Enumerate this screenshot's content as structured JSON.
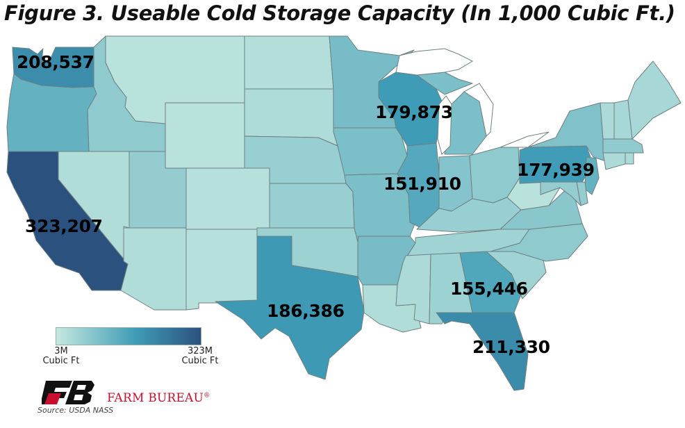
{
  "title": "Figure 3. Useable Cold Storage Capacity (In 1,000 Cubic Ft.)",
  "colors": {
    "low": "#c4e8df",
    "mid": "#3f9cb6",
    "high": "#2b527f"
  },
  "legend": {
    "min_value": "3M",
    "min_unit": "Cubic Ft",
    "max_value": "323M",
    "max_unit": "Cubic Ft"
  },
  "brand": "FARM BUREAU",
  "brand_mark": "®",
  "source": "Source: USDA NASS",
  "chart_data": {
    "type": "choropleth",
    "title": "Figure 3. Useable Cold Storage Capacity (In 1,000 Cubic Ft.)",
    "scale": {
      "min": 3000,
      "max": 323000,
      "unit": "1,000 Cubic Ft"
    },
    "labeled_states": [
      {
        "state": "WA",
        "value": 208537,
        "label": "208,537"
      },
      {
        "state": "CA",
        "value": 323207,
        "label": "323,207"
      },
      {
        "state": "WI",
        "value": 179873,
        "label": "179,873"
      },
      {
        "state": "IL",
        "value": 151910,
        "label": "151,910"
      },
      {
        "state": "PA",
        "value": 177939,
        "label": "177,939"
      },
      {
        "state": "TX",
        "value": 186386,
        "label": "186,386"
      },
      {
        "state": "GA",
        "value": 155446,
        "label": "155,446"
      },
      {
        "state": "FL",
        "value": 211330,
        "label": "211,330"
      }
    ],
    "estimated_levels": {
      "WA": 0.64,
      "OR": 0.4,
      "CA": 1.0,
      "ID": 0.22,
      "NV": 0.08,
      "MT": 0.04,
      "WY": 0.04,
      "UT": 0.2,
      "AZ": 0.08,
      "CO": 0.06,
      "NM": 0.06,
      "ND": 0.07,
      "SD": 0.09,
      "NE": 0.18,
      "KS": 0.18,
      "OK": 0.16,
      "TX": 0.57,
      "MN": 0.32,
      "IA": 0.3,
      "MO": 0.3,
      "AR": 0.32,
      "LA": 0.08,
      "WI": 0.55,
      "IL": 0.46,
      "MI": 0.3,
      "IN": 0.26,
      "OH": 0.22,
      "KY": 0.18,
      "TN": 0.15,
      "MS": 0.1,
      "AL": 0.16,
      "GA": 0.48,
      "FL": 0.65,
      "SC": 0.15,
      "NC": 0.22,
      "VA": 0.24,
      "WV": 0.04,
      "PA": 0.54,
      "NY": 0.28,
      "NJ": 0.4,
      "DE": 0.2,
      "MD": 0.2,
      "VT": 0.1,
      "NH": 0.12,
      "ME": 0.12,
      "MA": 0.22,
      "CT": 0.1,
      "RI": 0.1
    }
  }
}
